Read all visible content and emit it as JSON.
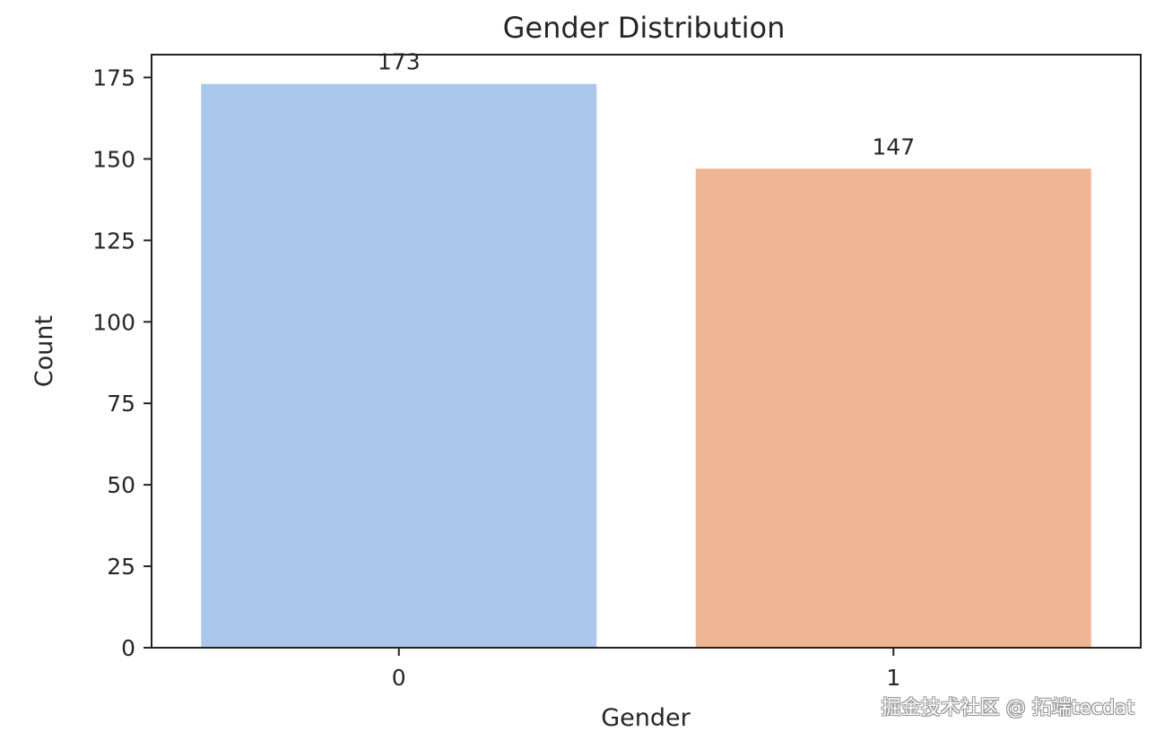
{
  "chart_data": {
    "type": "bar",
    "title": "Gender Distribution",
    "xlabel": "Gender",
    "ylabel": "Count",
    "categories": [
      "0",
      "1"
    ],
    "values": [
      173,
      147
    ],
    "data_labels": [
      "173",
      "147"
    ],
    "ylim": [
      0,
      182
    ],
    "yticks": [
      0,
      25,
      50,
      75,
      100,
      125,
      150,
      175
    ],
    "ytick_labels": [
      "0",
      "25",
      "50",
      "75",
      "100",
      "125",
      "150",
      "175"
    ],
    "colors": [
      "#abc7eb",
      "#f0b694"
    ],
    "grid": false,
    "legend": "none"
  },
  "watermark": "掘金技术社区 @ 拓端tecdat"
}
